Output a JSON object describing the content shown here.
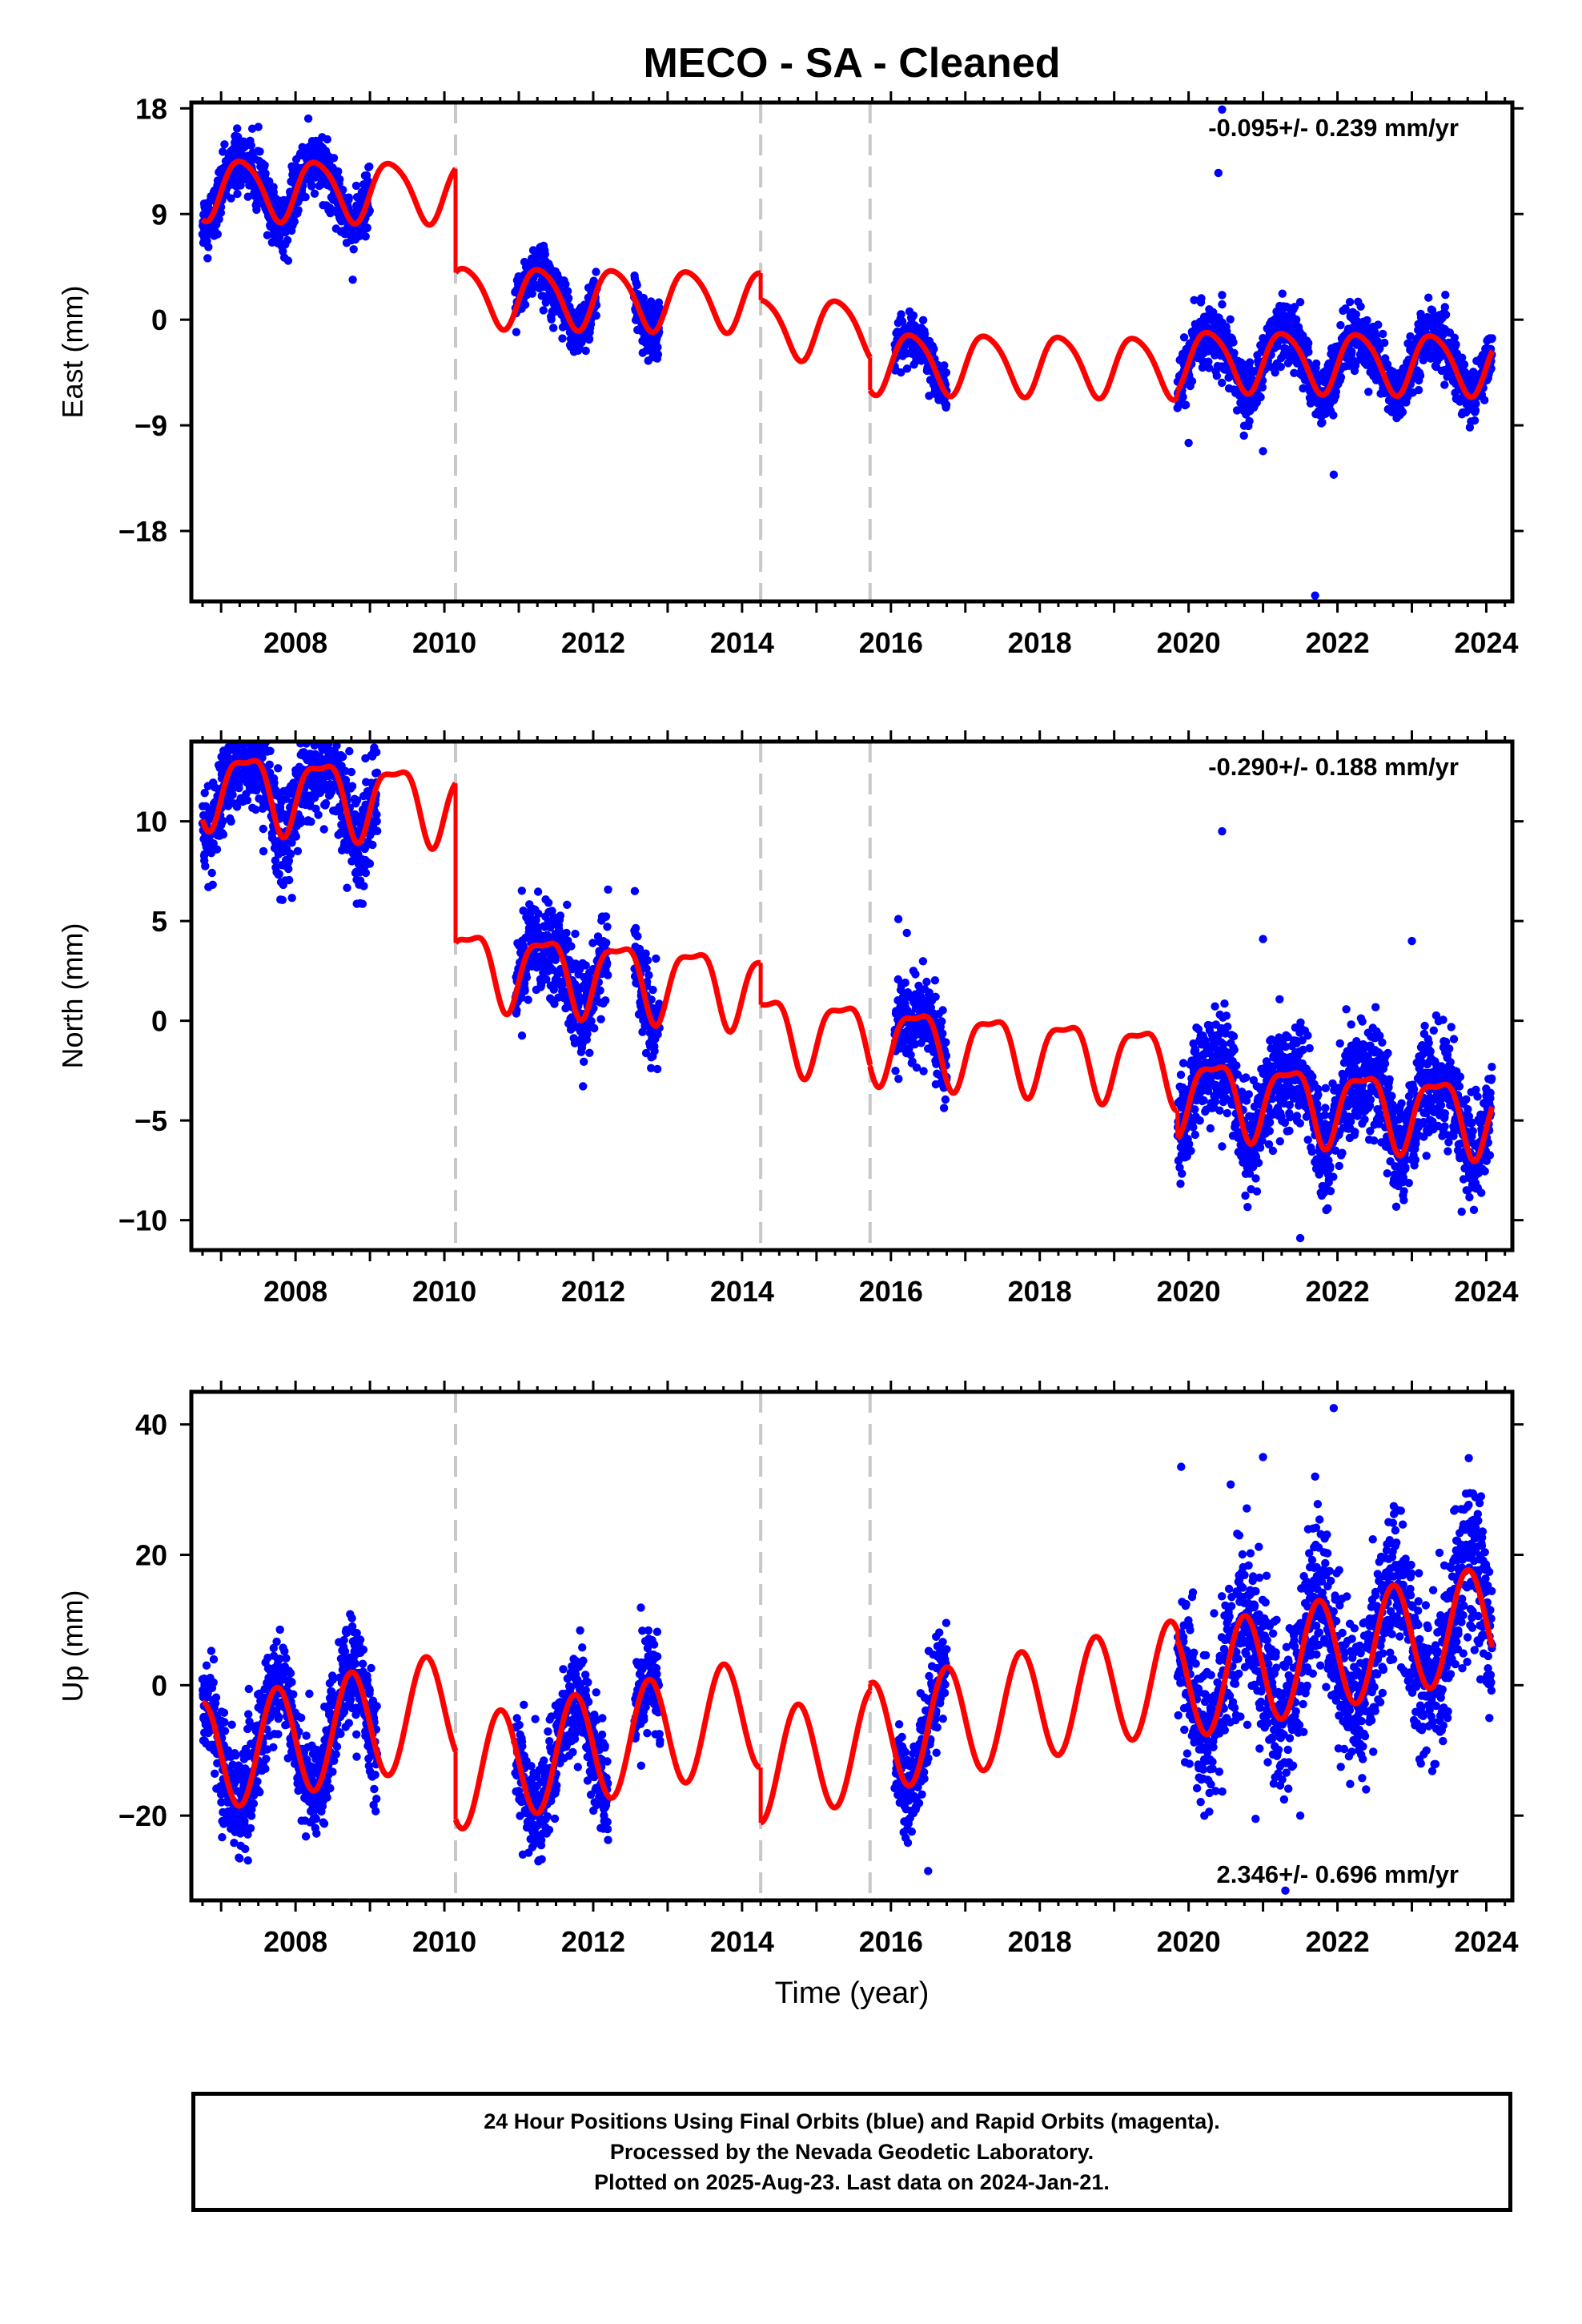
{
  "title": "MECO  - SA - Cleaned",
  "colors": {
    "data_points": "#0000ff",
    "model_line": "#ff0000",
    "event_lines": "#c8c8c8",
    "axes": "#000000"
  },
  "chart_data": [
    {
      "type": "scatter",
      "panel": "east",
      "title": "MECO  - SA - Cleaned",
      "ylabel": "East (mm)",
      "xlabel": "",
      "xlim": [
        2006.6,
        2024.35
      ],
      "ylim": [
        -24,
        18.5
      ],
      "x_ticks": [
        2008,
        2010,
        2012,
        2014,
        2016,
        2018,
        2020,
        2022,
        2024
      ],
      "y_ticks": [
        18,
        9,
        0,
        -9,
        -18
      ],
      "y_tick_labels": [
        "18",
        "9",
        "0",
        "−9",
        "−18"
      ],
      "annotation": "-0.095+/- 0.239 mm/yr",
      "annotation_position": "top-right",
      "event_lines": [
        2010.15,
        2014.25,
        2015.72
      ],
      "series": [
        {
          "name": "data",
          "segments": [
            {
              "start": 2006.75,
              "end": 2009.0,
              "offset": 1.2,
              "amp": 1.7,
              "noise": 1.2
            },
            {
              "start": 2010.95,
              "end": 2012.05,
              "offset": 3.0,
              "amp": 1.4,
              "noise": 1.1
            },
            {
              "start": 2012.55,
              "end": 2012.9,
              "offset": 3.2,
              "amp": 1.4,
              "noise": 1.2
            },
            {
              "start": 2016.05,
              "end": 2016.75,
              "offset": 3.8,
              "amp": 1.0,
              "noise": 0.9
            },
            {
              "start": 2019.85,
              "end": 2024.08,
              "offset": 1.0,
              "amp": 1.5,
              "noise": 1.2
            }
          ],
          "outliers": [
            [
              2020.45,
              17.9
            ],
            [
              2020.4,
              12.5
            ],
            [
              2020.45,
              2.1
            ],
            [
              2021.0,
              -11.2
            ],
            [
              2021.7,
              -23.5
            ],
            [
              2021.95,
              -13.2
            ],
            [
              2020.0,
              -10.5
            ],
            [
              2021.5,
              1.5
            ]
          ]
        },
        {
          "name": "model",
          "model": {
            "rate": -0.095,
            "ref": 2016.0,
            "intercept": -3.0,
            "annual": [
              2.5,
              -0.5
            ],
            "semiannual": [
              0.3,
              0.2
            ]
          },
          "offsets": [
            {
              "start": 2006.75,
              "end": 2010.15,
              "value": 13.35
            },
            {
              "start": 2010.15,
              "end": 2014.25,
              "value": 4.5
            },
            {
              "start": 2014.25,
              "end": 2015.72,
              "value": 2.2
            },
            {
              "start": 2015.72,
              "end": 2019.85,
              "value": -0.6
            },
            {
              "start": 2019.85,
              "end": 2024.08,
              "value": 0.0
            }
          ]
        }
      ]
    },
    {
      "type": "scatter",
      "panel": "north",
      "ylabel": "North (mm)",
      "xlabel": "",
      "xlim": [
        2006.6,
        2024.35
      ],
      "ylim": [
        -11.5,
        14
      ],
      "x_ticks": [
        2008,
        2010,
        2012,
        2014,
        2016,
        2018,
        2020,
        2022,
        2024
      ],
      "y_ticks": [
        10,
        5,
        0,
        -5,
        -10
      ],
      "y_tick_labels": [
        "10",
        "5",
        "0",
        "−5",
        "−10"
      ],
      "annotation": "-0.290+/- 0.188 mm/yr",
      "annotation_position": "top-right",
      "event_lines": [
        2010.15,
        2014.25,
        2015.72
      ],
      "series": [
        {
          "name": "data",
          "segments": [
            {
              "start": 2006.75,
              "end": 2009.1,
              "offset": 0.0,
              "amp": 0.6,
              "noise": 1.3
            },
            {
              "start": 2010.95,
              "end": 2012.2,
              "offset": 0.0,
              "amp": 0.6,
              "noise": 1.2
            },
            {
              "start": 2012.55,
              "end": 2012.9,
              "offset": 0.0,
              "amp": 0.6,
              "noise": 1.2
            },
            {
              "start": 2016.05,
              "end": 2016.75,
              "offset": 0.0,
              "amp": 0.6,
              "noise": 1.0
            },
            {
              "start": 2019.85,
              "end": 2024.08,
              "offset": 0.0,
              "amp": 0.6,
              "noise": 1.3
            }
          ],
          "outliers": [
            [
              2020.45,
              9.5
            ],
            [
              2016.1,
              5.1
            ],
            [
              2021.5,
              -10.9
            ],
            [
              2020.45,
              -6.3
            ],
            [
              2023.0,
              4.0
            ],
            [
              2021.0,
              4.1
            ]
          ]
        },
        {
          "name": "model",
          "model": {
            "rate": -0.29,
            "ref": 2016.0,
            "intercept": -2.4,
            "annual": [
              1.5,
              -1.0
            ],
            "semiannual": [
              0.5,
              0.3
            ]
          },
          "offsets": [
            {
              "start": 2006.75,
              "end": 2010.15,
              "value": 11.6
            },
            {
              "start": 2010.15,
              "end": 2014.25,
              "value": 3.6
            },
            {
              "start": 2014.25,
              "end": 2015.72,
              "value": 1.5
            },
            {
              "start": 2015.72,
              "end": 2019.85,
              "value": 1.4
            },
            {
              "start": 2019.85,
              "end": 2024.08,
              "value": 0.0
            }
          ]
        }
      ]
    },
    {
      "type": "scatter",
      "panel": "up",
      "ylabel": "Up (mm)",
      "xlabel": "Time (year)",
      "xlim": [
        2006.6,
        2024.35
      ],
      "ylim": [
        -33,
        45
      ],
      "x_ticks": [
        2008,
        2010,
        2012,
        2014,
        2016,
        2018,
        2020,
        2022,
        2024
      ],
      "y_ticks": [
        40,
        20,
        0,
        -20
      ],
      "y_tick_labels": [
        "40",
        "20",
        "0",
        "−20"
      ],
      "annotation": "2.346+/- 0.696 mm/yr",
      "annotation_position": "bottom-right",
      "event_lines": [
        2010.15,
        2014.25,
        2015.72
      ],
      "series": [
        {
          "name": "data",
          "segments": [
            {
              "start": 2006.75,
              "end": 2009.1,
              "offset": 0.0,
              "amp": 3.0,
              "noise": 4.0
            },
            {
              "start": 2010.95,
              "end": 2012.2,
              "offset": 0.0,
              "amp": 3.0,
              "noise": 3.8
            },
            {
              "start": 2012.55,
              "end": 2012.9,
              "offset": 0.0,
              "amp": 3.0,
              "noise": 4.0
            },
            {
              "start": 2016.05,
              "end": 2016.75,
              "offset": 0.0,
              "amp": 2.0,
              "noise": 3.5
            },
            {
              "start": 2019.85,
              "end": 2024.08,
              "offset": 0.0,
              "amp": 3.5,
              "noise": 6.0
            }
          ],
          "outliers": [
            [
              2021.95,
              42.5
            ],
            [
              2019.9,
              33.5
            ],
            [
              2021.0,
              35.0
            ],
            [
              2021.7,
              32.0
            ],
            [
              2021.3,
              -31.5
            ],
            [
              2016.5,
              -28.5
            ],
            [
              2020.9,
              -20.5
            ],
            [
              2021.5,
              -20.0
            ]
          ]
        },
        {
          "name": "model",
          "model": {
            "rate": 2.346,
            "ref": 2016.0,
            "intercept": -9.0,
            "annual": [
              -8.5,
              0.0
            ],
            "semiannual": [
              0.0,
              0.0
            ]
          },
          "offsets": [
            {
              "start": 2006.75,
              "end": 2010.15,
              "value": 19.5
            },
            {
              "start": 2010.15,
              "end": 2014.25,
              "value": 9.0
            },
            {
              "start": 2014.25,
              "end": 2015.72,
              "value": 0.5
            },
            {
              "start": 2015.72,
              "end": 2019.85,
              "value": 1.5
            },
            {
              "start": 2019.85,
              "end": 2024.08,
              "value": 0.0
            }
          ]
        }
      ]
    }
  ],
  "footer": {
    "line1": "24 Hour Positions Using Final Orbits (blue) and Rapid Orbits (magenta).",
    "line2": "Processed by the Nevada Geodetic Laboratory.",
    "line3": "Plotted on 2025-Aug-23. Last data on 2024-Jan-21."
  }
}
